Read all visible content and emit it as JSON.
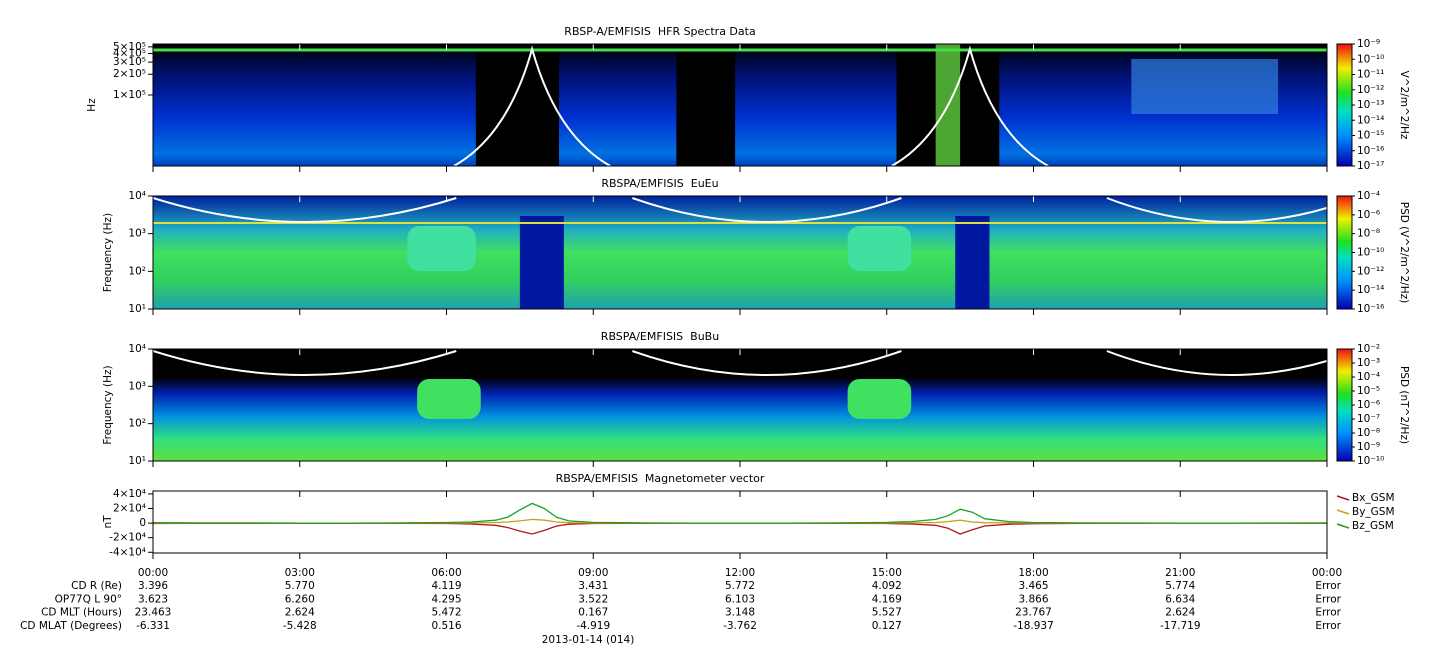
{
  "chart_data": [
    {
      "type": "spectrogram",
      "title": "RBSP-A/EMFISIS  HFR Spectra Data",
      "y_label": "Hz",
      "log_y": true,
      "ylim": [
        9300,
        550000
      ],
      "yticks": [
        {
          "value": 100000,
          "label": "1×10⁵"
        },
        {
          "value": 200000,
          "label": "2×10⁵"
        },
        {
          "value": 300000,
          "label": "3×10⁵"
        },
        {
          "value": 400000,
          "label": "4×10⁵"
        },
        {
          "value": 500000,
          "label": "5×10⁵"
        }
      ],
      "colorbar": {
        "label": "V^2/m^2/Hz",
        "log": true,
        "lim": [
          1e-17,
          1e-09
        ],
        "ticks": [
          {
            "value": 1e-09,
            "label": "10⁻⁹"
          },
          {
            "value": 1e-10,
            "label": "10⁻¹⁰"
          },
          {
            "value": 1e-11,
            "label": "10⁻¹¹"
          },
          {
            "value": 1e-12,
            "label": "10⁻¹²"
          },
          {
            "value": 1e-13,
            "label": "10⁻¹³"
          },
          {
            "value": 1e-14,
            "label": "10⁻¹⁴"
          },
          {
            "value": 1e-15,
            "label": "10⁻¹⁵"
          },
          {
            "value": 1e-16,
            "label": "10⁻¹⁶"
          },
          {
            "value": 1e-17,
            "label": "10⁻¹⁷"
          }
        ]
      }
    },
    {
      "type": "spectrogram",
      "title": "RBSPA/EMFISIS  EuEu",
      "y_label": "Frequency (Hz)",
      "log_y": true,
      "ylim": [
        10,
        10000
      ],
      "yticks": [
        {
          "value": 10,
          "label": "10¹"
        },
        {
          "value": 100,
          "label": "10²"
        },
        {
          "value": 1000,
          "label": "10³"
        },
        {
          "value": 10000,
          "label": "10⁴"
        }
      ],
      "colorbar": {
        "label": "PSD (V^2/m^2/Hz)",
        "log": true,
        "lim": [
          1e-16,
          0.0001
        ],
        "ticks": [
          {
            "value": 0.0001,
            "label": "10⁻⁴"
          },
          {
            "value": 1e-06,
            "label": "10⁻⁶"
          },
          {
            "value": 1e-08,
            "label": "10⁻⁸"
          },
          {
            "value": 1e-10,
            "label": "10⁻¹⁰"
          },
          {
            "value": 1e-12,
            "label": "10⁻¹²"
          },
          {
            "value": 1e-14,
            "label": "10⁻¹⁴"
          },
          {
            "value": 1e-16,
            "label": "10⁻¹⁶"
          }
        ]
      }
    },
    {
      "type": "spectrogram",
      "title": "RBSPA/EMFISIS  BuBu",
      "y_label": "Frequency (Hz)",
      "log_y": true,
      "ylim": [
        10,
        10000
      ],
      "yticks": [
        {
          "value": 10,
          "label": "10¹"
        },
        {
          "value": 100,
          "label": "10²"
        },
        {
          "value": 1000,
          "label": "10³"
        },
        {
          "value": 10000,
          "label": "10⁴"
        }
      ],
      "colorbar": {
        "label": "PSD (nT^2/Hz)",
        "log": true,
        "lim": [
          1e-10,
          0.01
        ],
        "ticks": [
          {
            "value": 0.01,
            "label": "10⁻²"
          },
          {
            "value": 0.001,
            "label": "10⁻³"
          },
          {
            "value": 0.0001,
            "label": "10⁻⁴"
          },
          {
            "value": 1e-05,
            "label": "10⁻⁵"
          },
          {
            "value": 1e-06,
            "label": "10⁻⁶"
          },
          {
            "value": 1e-07,
            "label": "10⁻⁷"
          },
          {
            "value": 1e-08,
            "label": "10⁻⁸"
          },
          {
            "value": 1e-09,
            "label": "10⁻⁹"
          },
          {
            "value": 1e-10,
            "label": "10⁻¹⁰"
          }
        ]
      }
    },
    {
      "type": "line",
      "title": "RBSPA/EMFISIS  Magnetometer vector",
      "y_label": "nT",
      "ylim": [
        -41000,
        44000
      ],
      "yticks": [
        {
          "value": -40000,
          "label": "-4×10⁴"
        },
        {
          "value": -20000,
          "label": "-2×10⁴"
        },
        0,
        {
          "value": 20000,
          "label": "2×10⁴"
        },
        {
          "value": 40000,
          "label": "4×10⁴"
        }
      ],
      "xlim": [
        0,
        24
      ],
      "xticks": [
        {
          "value": 0,
          "label": "00:00"
        },
        {
          "value": 3,
          "label": "03:00"
        },
        {
          "value": 6,
          "label": "06:00"
        },
        {
          "value": 9,
          "label": "09:00"
        },
        {
          "value": 12,
          "label": "12:00"
        },
        {
          "value": 15,
          "label": "15:00"
        },
        {
          "value": 18,
          "label": "18:00"
        },
        {
          "value": 21,
          "label": "21:00"
        },
        {
          "value": 24,
          "label": "00:00"
        }
      ],
      "x_label": "2013-01-14 (014)",
      "x": [
        0,
        1,
        2,
        3,
        4,
        5,
        6,
        6.5,
        7,
        7.25,
        7.5,
        7.75,
        8,
        8.25,
        8.5,
        9,
        10,
        11,
        12,
        13,
        14,
        15,
        15.5,
        16,
        16.25,
        16.5,
        16.75,
        17,
        17.5,
        18,
        19,
        20,
        21,
        22,
        23,
        24
      ],
      "series": [
        {
          "name": "Bx_GSM",
          "color": "#b01818",
          "values": [
            -500,
            -400,
            -300,
            -300,
            -300,
            -400,
            -600,
            -1200,
            -3000,
            -6000,
            -11000,
            -15000,
            -10000,
            -4000,
            -1500,
            -500,
            -300,
            -200,
            -200,
            -200,
            -300,
            -600,
            -1200,
            -3000,
            -7000,
            -15000,
            -9000,
            -4000,
            -1500,
            -800,
            -400,
            -300,
            -200,
            -200,
            -200,
            -300
          ]
        },
        {
          "name": "By_GSM",
          "color": "#c8a020",
          "values": [
            0,
            0,
            0,
            0,
            0,
            0,
            100,
            300,
            800,
            1500,
            3000,
            5000,
            4000,
            1500,
            500,
            100,
            0,
            0,
            0,
            0,
            0,
            100,
            300,
            800,
            2000,
            4000,
            1500,
            600,
            200,
            100,
            0,
            0,
            0,
            0,
            0,
            0
          ]
        },
        {
          "name": "Bz_GSM",
          "color": "#20a020",
          "values": [
            500,
            300,
            200,
            0,
            0,
            200,
            800,
            1500,
            4000,
            8000,
            18000,
            27000,
            20000,
            8000,
            3000,
            1000,
            300,
            0,
            0,
            0,
            200,
            1000,
            2000,
            5000,
            10000,
            19000,
            15000,
            6000,
            2000,
            800,
            300,
            100,
            0,
            0,
            100,
            200
          ]
        }
      ]
    }
  ],
  "ephemeris": {
    "rows": [
      {
        "label": "CD R (Re)",
        "values": [
          "3.396",
          "5.770",
          "4.119",
          "3.431",
          "5.772",
          "4.092",
          "3.465",
          "5.774",
          "Error"
        ]
      },
      {
        "label": "OP77Q L 90°",
        "values": [
          "3.623",
          "6.260",
          "4.295",
          "3.522",
          "6.103",
          "4.169",
          "3.866",
          "6.634",
          "Error"
        ]
      },
      {
        "label": "CD MLT (Hours)",
        "values": [
          "23.463",
          "2.624",
          "5.472",
          "0.167",
          "3.148",
          "5.527",
          "23.767",
          "2.624",
          "Error"
        ]
      },
      {
        "label": "CD MLAT (Degrees)",
        "values": [
          "-6.331",
          "-5.428",
          "0.516",
          "-4.919",
          "-3.762",
          "0.127",
          "-18.937",
          "-17.719",
          "Error"
        ]
      }
    ]
  }
}
